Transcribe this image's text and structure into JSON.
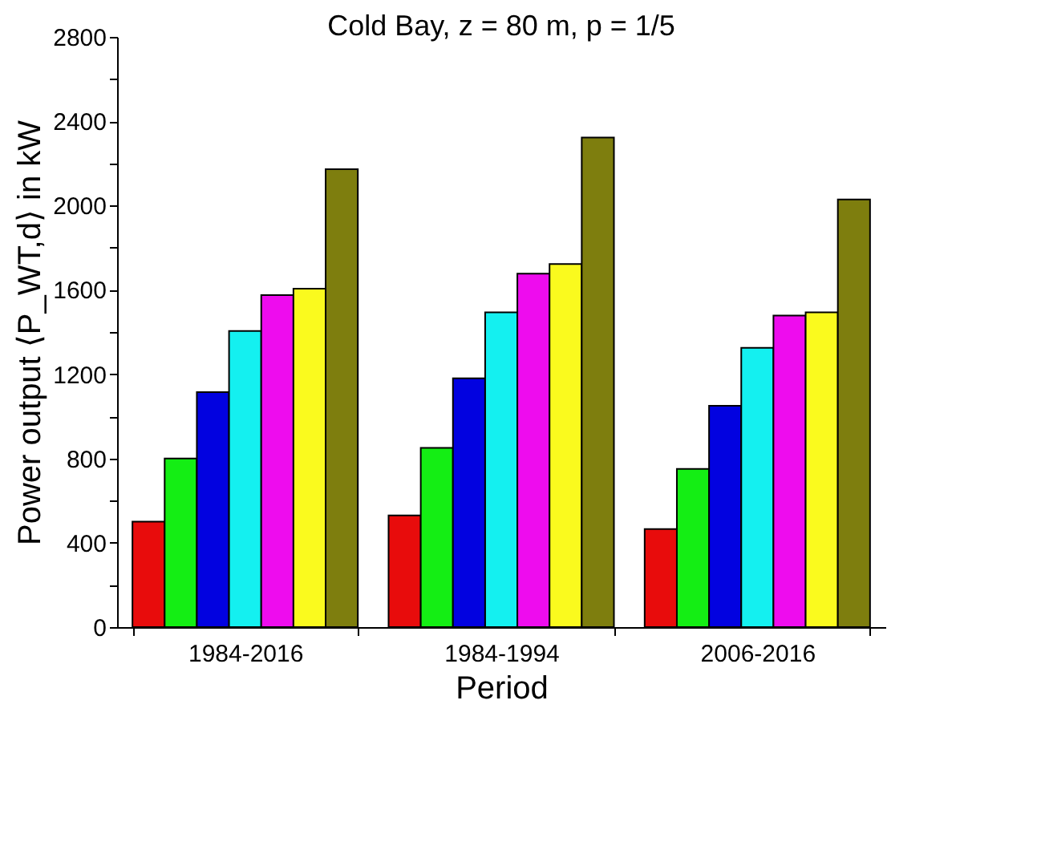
{
  "chart_data": {
    "type": "bar",
    "title": "Cold Bay, z = 80 m, p = 1/5",
    "xlabel": "Period",
    "ylabel": "Power output ⟨P_WT,d⟩ in kW",
    "categories": [
      "1984-2016",
      "1984-1994",
      "2006-2016"
    ],
    "series": [
      {
        "color": "#e80c0c",
        "values": [
          500,
          530,
          465
        ]
      },
      {
        "color": "#14ee14",
        "values": [
          800,
          850,
          750
        ]
      },
      {
        "color": "#0202e0",
        "values": [
          1115,
          1180,
          1050
        ]
      },
      {
        "color": "#14f0f0",
        "values": [
          1405,
          1493,
          1325
        ]
      },
      {
        "color": "#ee0cee",
        "values": [
          1575,
          1677,
          1478
        ]
      },
      {
        "color": "#fafa1e",
        "values": [
          1605,
          1722,
          1493
        ]
      },
      {
        "color": "#7e7e0e",
        "values": [
          2172,
          2323,
          2029
        ]
      }
    ],
    "ylim": [
      0,
      2800
    ],
    "yticks": [
      0,
      {
        "value": 200,
        "label": null
      },
      400,
      {
        "value": 600,
        "label": null
      },
      800,
      {
        "value": 1000,
        "label": null
      },
      1200,
      {
        "value": 1400,
        "label": null
      },
      1600,
      {
        "value": 1800,
        "label": null
      },
      2000,
      {
        "value": 2200,
        "label": null
      },
      2400,
      {
        "value": 2600,
        "label": null
      },
      2800
    ],
    "grid": false,
    "legend": false
  }
}
